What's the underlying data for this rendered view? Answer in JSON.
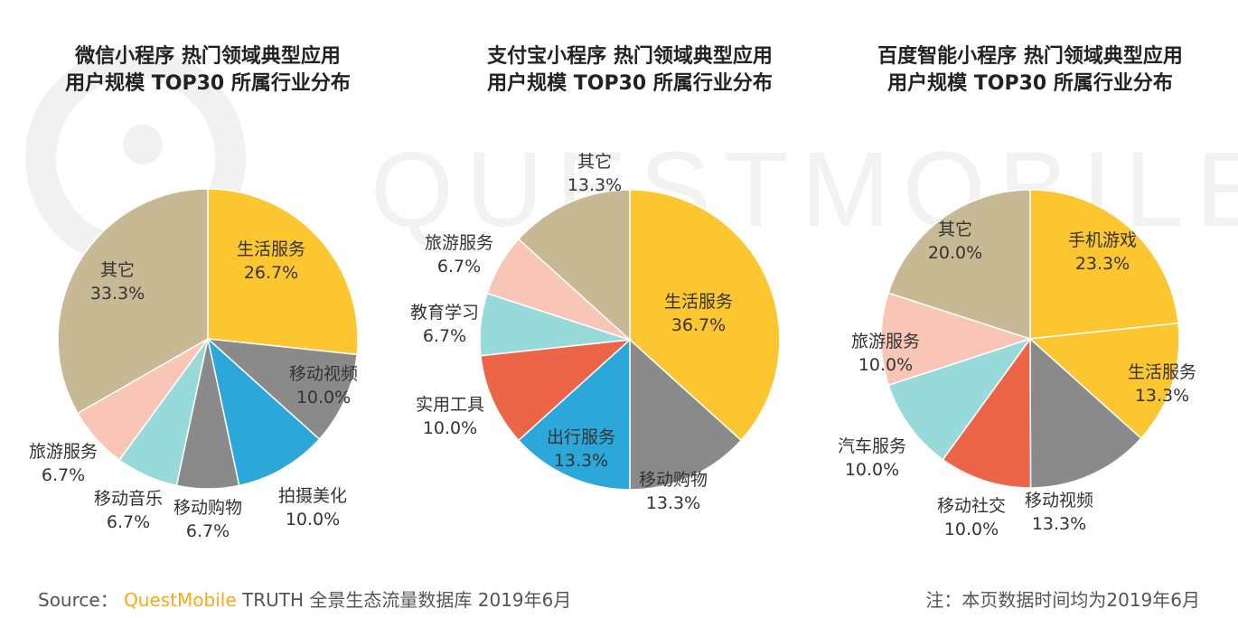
{
  "watermark": "QUESTMOBILE",
  "colors": {
    "生活服务": "#FCC631",
    "手机游戏": "#FCC631",
    "移动视频": "#8A8A8A",
    "移动购物": "#8A8A8A",
    "拍摄美化": "#2BA7DA",
    "出行服务": "#2BA7DA",
    "移动社交": "#EC6549",
    "实用工具": "#EC6549",
    "移动音乐": "#97DAD9",
    "教育学习": "#97DAD9",
    "汽车服务": "#97DAD9",
    "旅游服务": "#F8C5B7",
    "其它": "#C6B994"
  },
  "chart_data": [
    {
      "type": "pie",
      "title": [
        "微信小程序 热门领域典型应用",
        "用户规模 TOP30 所属行业分布"
      ],
      "slices": [
        {
          "label": "生活服务",
          "value": 26.7,
          "text": "26.7%"
        },
        {
          "label": "移动视频",
          "value": 10.0,
          "text": "10.0%"
        },
        {
          "label": "拍摄美化",
          "value": 10.0,
          "text": "10.0%"
        },
        {
          "label": "移动购物",
          "value": 6.7,
          "text": "6.7%"
        },
        {
          "label": "移动音乐",
          "value": 6.7,
          "text": "6.7%"
        },
        {
          "label": "旅游服务",
          "value": 6.7,
          "text": "6.7%"
        },
        {
          "label": "其它",
          "value": 33.3,
          "text": "33.3%"
        }
      ]
    },
    {
      "type": "pie",
      "title": [
        "支付宝小程序 热门领域典型应用",
        "用户规模 TOP30 所属行业分布"
      ],
      "slices": [
        {
          "label": "生活服务",
          "value": 36.7,
          "text": "36.7%"
        },
        {
          "label": "移动购物",
          "value": 13.3,
          "text": "13.3%"
        },
        {
          "label": "出行服务",
          "value": 13.3,
          "text": "13.3%"
        },
        {
          "label": "实用工具",
          "value": 10.0,
          "text": "10.0%"
        },
        {
          "label": "教育学习",
          "value": 6.7,
          "text": "6.7%"
        },
        {
          "label": "旅游服务",
          "value": 6.7,
          "text": "6.7%"
        },
        {
          "label": "其它",
          "value": 13.3,
          "text": "13.3%"
        }
      ]
    },
    {
      "type": "pie",
      "title": [
        "百度智能小程序 热门领域典型应用",
        "用户规模 TOP30 所属行业分布"
      ],
      "slices": [
        {
          "label": "手机游戏",
          "value": 23.3,
          "text": "23.3%"
        },
        {
          "label": "生活服务",
          "value": 13.3,
          "text": "13.3%"
        },
        {
          "label": "移动视频",
          "value": 13.3,
          "text": "13.3%"
        },
        {
          "label": "移动社交",
          "value": 10.0,
          "text": "10.0%"
        },
        {
          "label": "汽车服务",
          "value": 10.0,
          "text": "10.0%"
        },
        {
          "label": "旅游服务",
          "value": 10.0,
          "text": "10.0%"
        },
        {
          "label": "其它",
          "value": 20.0,
          "text": "20.0%"
        }
      ]
    }
  ],
  "footer": {
    "source_prefix": "Source：",
    "brand": "QuestMobile",
    "source_rest": " TRUTH 全景生态流量数据库 2019年6月",
    "note": "注：本页数据时间均为2019年6月"
  }
}
